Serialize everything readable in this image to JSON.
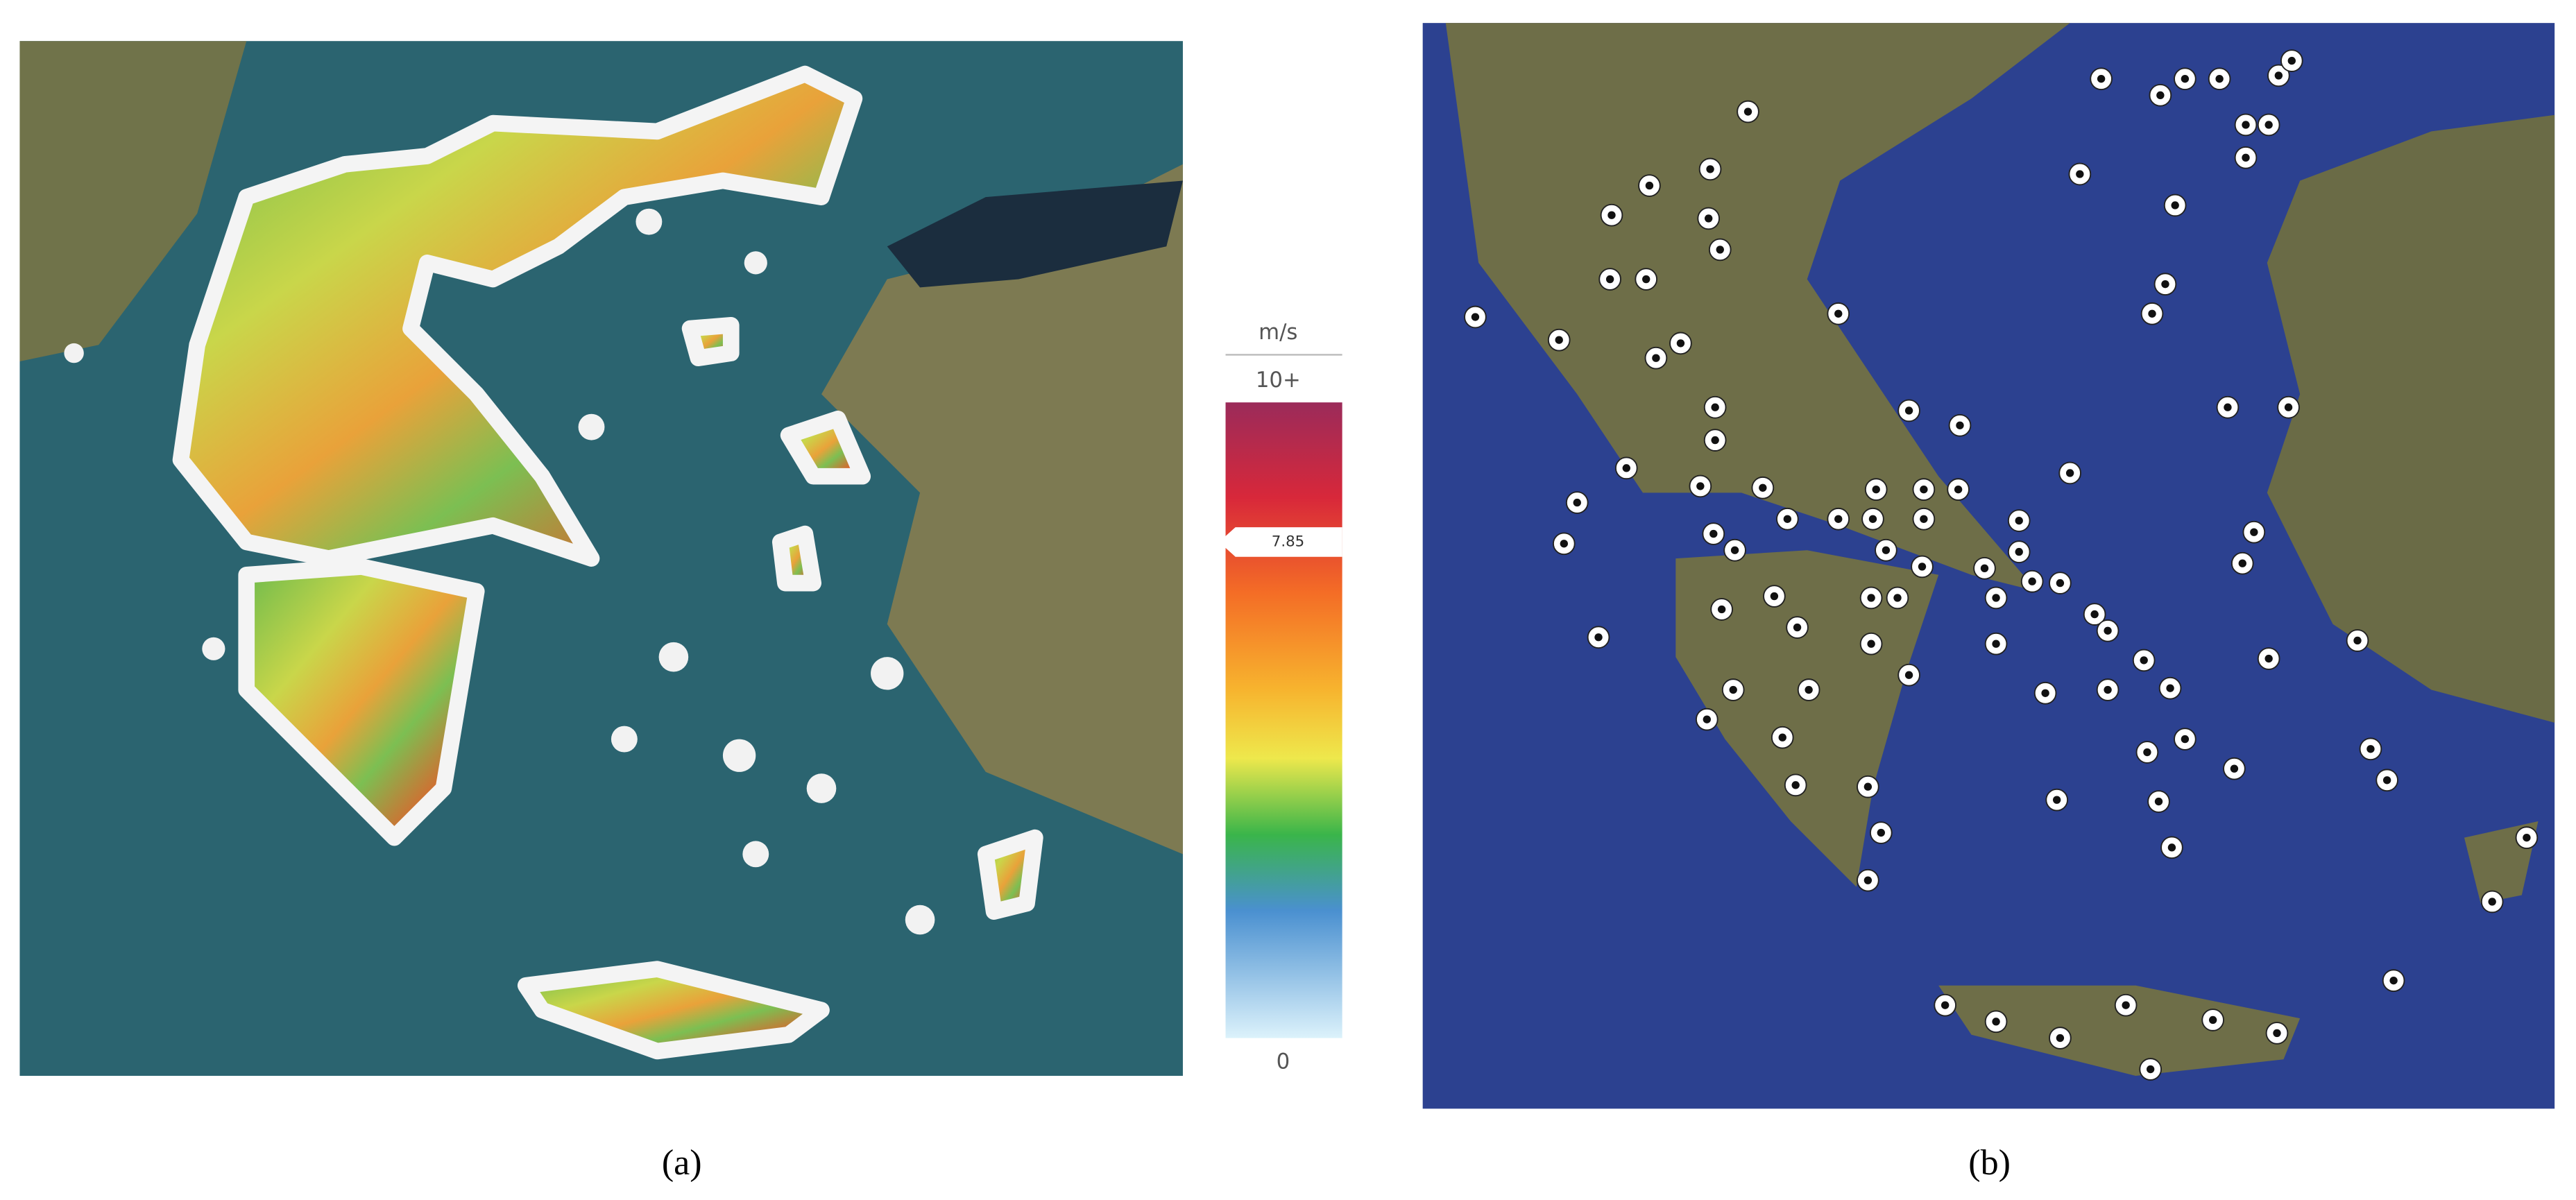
{
  "panel_a": {
    "legend": {
      "unit": "m/s",
      "max_label": "10+",
      "marker": "7.85",
      "min_label": "0"
    },
    "caption": "(a)"
  },
  "panel_b": {
    "caption": "(b)"
  }
}
